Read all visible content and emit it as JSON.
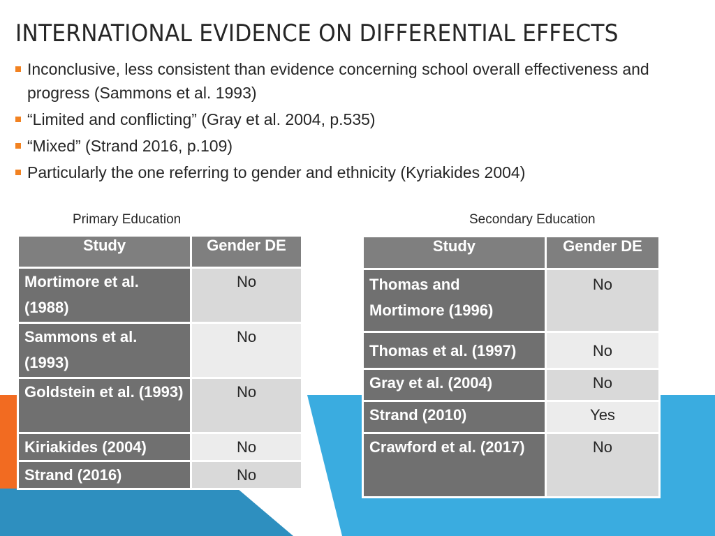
{
  "title": "INTERNATIONAL EVIDENCE ON DIFFERENTIAL EFFECTS",
  "bullets": [
    "Inconclusive, less consistent than evidence concerning school overall effectiveness and progress (Sammons et al. 1993)",
    "“Limited and conflicting” (Gray et al. 2004, p.535)",
    "“Mixed” (Strand 2016, p.109)",
    "Particularly the one referring to gender and ethnicity (Kyriakides 2004)"
  ],
  "primary": {
    "label": "Primary Education",
    "headers": [
      "Study",
      "Gender DE"
    ],
    "rows": [
      {
        "study": "Mortimore et al. (1988)",
        "value": "No"
      },
      {
        "study": "Sammons et al. (1993)",
        "value": "No"
      },
      {
        "study": "Goldstein et al. (1993)",
        "value": "No"
      },
      {
        "study": "Kiriakides (2004)",
        "value": "No"
      },
      {
        "study": "Strand (2016)",
        "value": "No"
      }
    ]
  },
  "secondary": {
    "label": "Secondary Education",
    "headers": [
      "Study",
      "Gender DE"
    ],
    "rows": [
      {
        "study": "Thomas and Mortimore (1996)",
        "value": "No"
      },
      {
        "study": "Thomas et al. (1997)",
        "value": "No"
      },
      {
        "study": "Gray et al. (2004)",
        "value": "No"
      },
      {
        "study": "Strand (2010)",
        "value": "Yes"
      },
      {
        "study": "Crawford et al. (2017)",
        "value": "No"
      }
    ]
  },
  "colors": {
    "accent_orange": "#f26b21",
    "accent_blue": "#3aace0",
    "bullet": "#f28221",
    "header_gray": "#7f7f7f"
  }
}
